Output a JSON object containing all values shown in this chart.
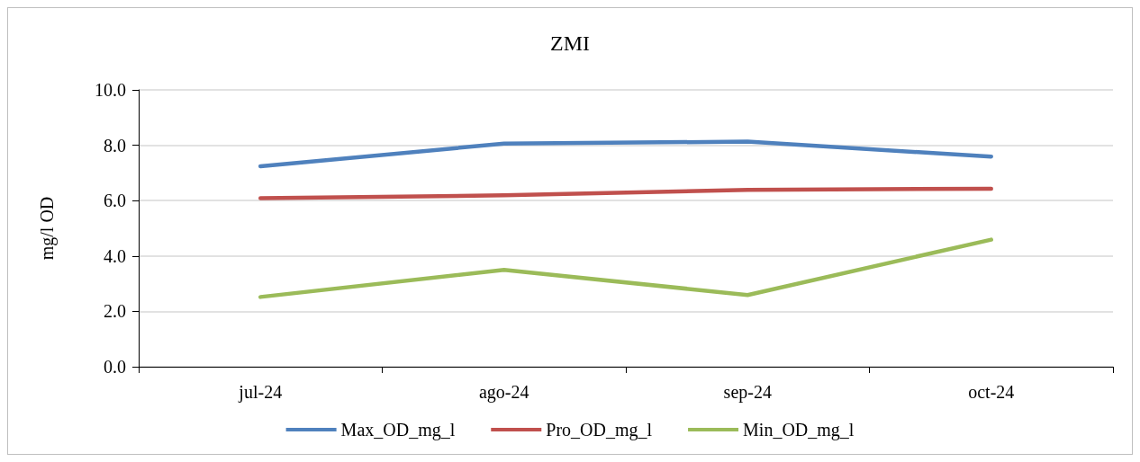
{
  "chart_data": {
    "type": "line",
    "title": "ZMI",
    "ylabel": "mg/l OD",
    "categories": [
      "jul-24",
      "ago-24",
      "sep-24",
      "oct-24"
    ],
    "series": [
      {
        "name": "Max_OD_mg_l",
        "color": "#4f81bd",
        "values": [
          7.24,
          8.06,
          8.13,
          7.59
        ]
      },
      {
        "name": "Pro_OD_mg_l",
        "color": "#c0504d",
        "values": [
          6.09,
          6.19,
          6.39,
          6.43
        ]
      },
      {
        "name": "Min_OD_mg_l",
        "color": "#9bbb59",
        "values": [
          2.52,
          3.5,
          2.59,
          4.59
        ]
      }
    ],
    "ylim": [
      0,
      10
    ],
    "yticks": [
      {
        "value": 0,
        "label": "0.0"
      },
      {
        "value": 2,
        "label": "2.0"
      },
      {
        "value": 4,
        "label": "4.0"
      },
      {
        "value": 6,
        "label": "6.0"
      },
      {
        "value": 8,
        "label": "8.0"
      },
      {
        "value": 10,
        "label": "10.0"
      }
    ],
    "grid": "y",
    "legend": "bottom",
    "marker": "none",
    "line_style": "solid"
  }
}
